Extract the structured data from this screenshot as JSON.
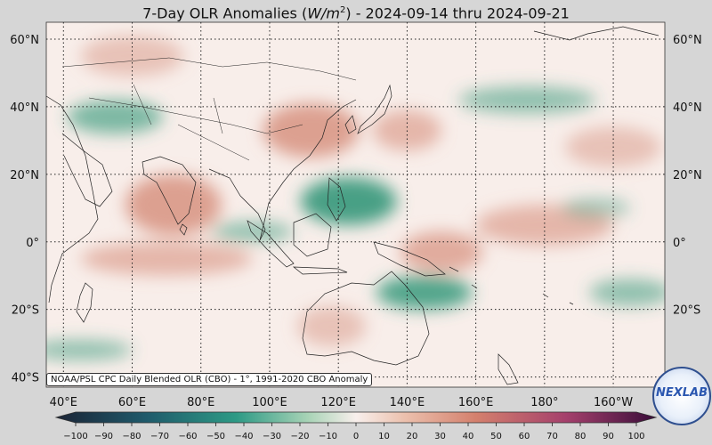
{
  "title_prefix": "7-Day OLR Anomalies (",
  "title_unit_base": "W/m",
  "title_unit_exp": "2",
  "title_suffix": ") - 2024-09-14 thru 2024-09-21",
  "source_note": "NOAA/PSL CPC Daily Blended OLR (CBO) - 1°, 1991-2020 CBO Anomaly",
  "logo_text": "NEXLAB",
  "map": {
    "lon_min": 35,
    "lon_max": 215,
    "lat_min": -43,
    "lat_max": 65,
    "lat_ticks": [
      60,
      40,
      20,
      0,
      -20,
      -40
    ],
    "lat_labels": [
      "60°N",
      "40°N",
      "20°N",
      "0°",
      "20°S",
      "40°S"
    ],
    "lon_ticks": [
      40,
      60,
      80,
      100,
      120,
      140,
      160,
      180,
      200,
      220
    ],
    "lon_labels": [
      "40°E",
      "60°E",
      "80°E",
      "100°E",
      "120°E",
      "140°E",
      "160°E",
      "180°",
      "160°W",
      "140°W"
    ],
    "gridlines": true
  },
  "anomaly_regions": [
    {
      "lon": 72,
      "lat": 11,
      "rlon": 14,
      "rlat": 9,
      "value": 35
    },
    {
      "lon": 112,
      "lat": 33,
      "rlon": 14,
      "rlat": 8,
      "value": 35
    },
    {
      "lon": 140,
      "lat": 33,
      "rlon": 10,
      "rlat": 6,
      "value": 25
    },
    {
      "lon": 70,
      "lat": -5,
      "rlon": 25,
      "rlat": 5,
      "value": 25
    },
    {
      "lon": 150,
      "lat": -3,
      "rlon": 12,
      "rlat": 6,
      "value": 30
    },
    {
      "lon": 180,
      "lat": 5,
      "rlon": 20,
      "rlat": 6,
      "value": 25
    },
    {
      "lon": 200,
      "lat": 28,
      "rlon": 14,
      "rlat": 6,
      "value": 20
    },
    {
      "lon": 118,
      "lat": -25,
      "rlon": 10,
      "rlat": 6,
      "value": 20
    },
    {
      "lon": 60,
      "lat": 55,
      "rlon": 15,
      "rlat": 6,
      "value": 20
    },
    {
      "lon": 123,
      "lat": 12,
      "rlon": 14,
      "rlat": 7,
      "value": -45
    },
    {
      "lon": 145,
      "lat": -15,
      "rlon": 14,
      "rlat": 5,
      "value": -40
    },
    {
      "lon": 55,
      "lat": 37,
      "rlon": 14,
      "rlat": 5,
      "value": -30
    },
    {
      "lon": 45,
      "lat": -32,
      "rlon": 15,
      "rlat": 3,
      "value": -25
    },
    {
      "lon": 175,
      "lat": 42,
      "rlon": 20,
      "rlat": 4,
      "value": -25
    },
    {
      "lon": 205,
      "lat": -15,
      "rlon": 12,
      "rlat": 4,
      "value": -25
    },
    {
      "lon": 195,
      "lat": 10,
      "rlon": 10,
      "rlat": 3,
      "value": -20
    },
    {
      "lon": 95,
      "lat": 3,
      "rlon": 12,
      "rlat": 3,
      "value": -25
    }
  ],
  "colorbar": {
    "ticks": [
      -100,
      -90,
      -80,
      -70,
      -60,
      -50,
      -40,
      -30,
      -20,
      -10,
      0,
      10,
      20,
      30,
      40,
      50,
      60,
      70,
      80,
      90,
      100
    ],
    "tick_labels": [
      "−100",
      "−90",
      "−80",
      "−70",
      "−60",
      "−50",
      "−40",
      "−30",
      "−20",
      "−10",
      "0",
      "10",
      "20",
      "30",
      "40",
      "50",
      "60",
      "70",
      "80",
      "90",
      "100"
    ],
    "min": -100,
    "max": 100
  },
  "colors": {
    "neutral": "#f8eeea",
    "positive": "#d58a77",
    "negative": "#3f9c80",
    "coast": "#222222",
    "grid": "#222222"
  }
}
